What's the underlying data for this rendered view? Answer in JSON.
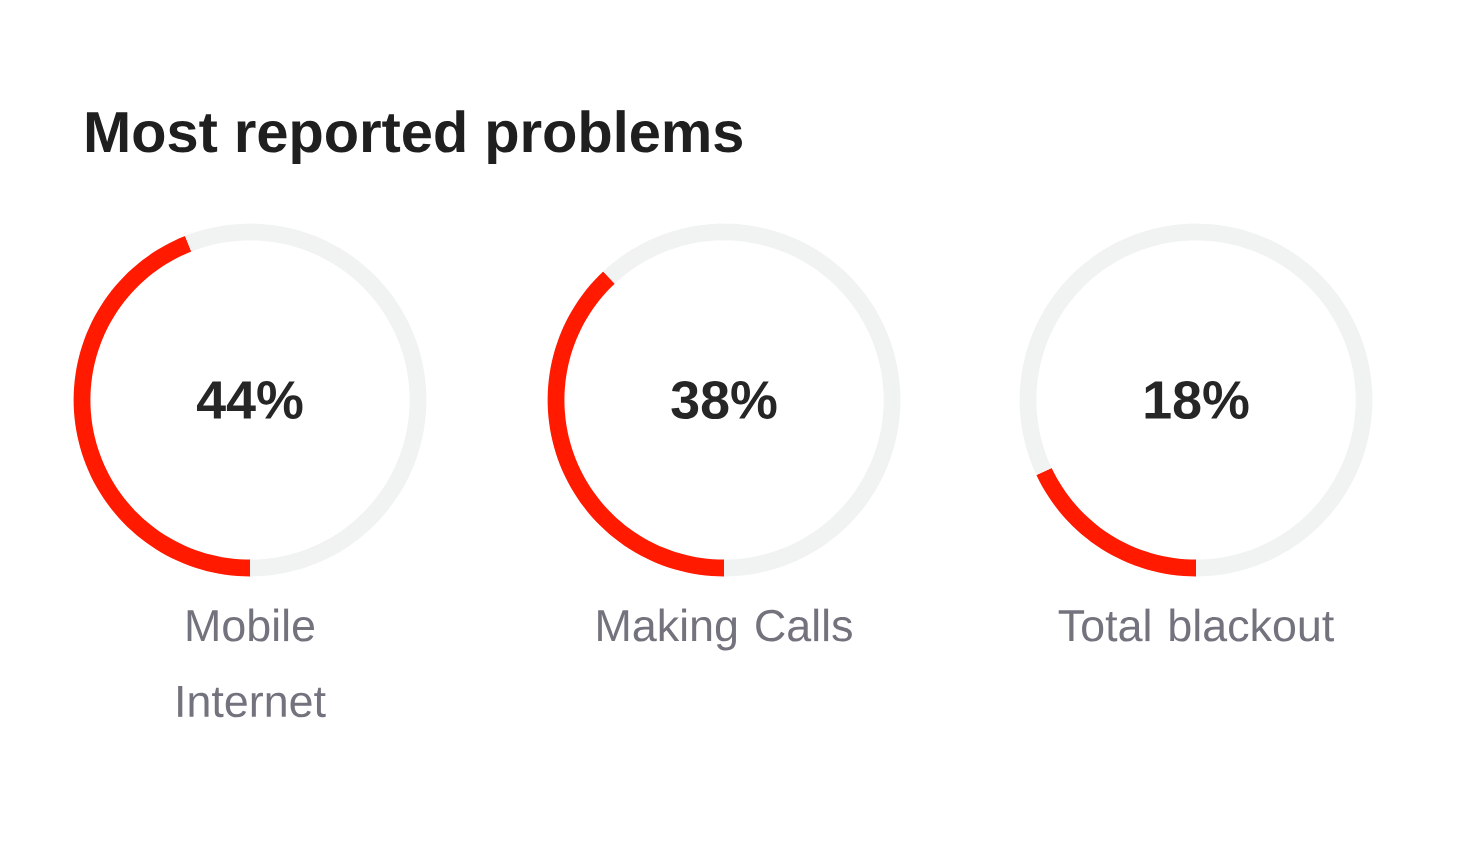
{
  "chart_data": [
    {
      "type": "donut",
      "title": "Most reported problems",
      "categories": [
        "Mobile Internet",
        null
      ],
      "values": [
        44,
        56
      ],
      "colors": [
        "#ff1a00",
        "#f1f3f3"
      ],
      "annotations": [
        "44%"
      ]
    },
    {
      "type": "donut",
      "categories": [
        "Making Calls",
        null
      ],
      "values": [
        38,
        62
      ],
      "colors": [
        "#ff1a00",
        "#f1f3f3"
      ],
      "annotations": [
        "38%"
      ]
    },
    {
      "type": "donut",
      "categories": [
        "Total blackout",
        null
      ],
      "values": [
        18,
        82
      ],
      "colors": [
        "#ff1a00",
        "#f1f3f3"
      ],
      "annotations": [
        "18%"
      ]
    }
  ]
}
